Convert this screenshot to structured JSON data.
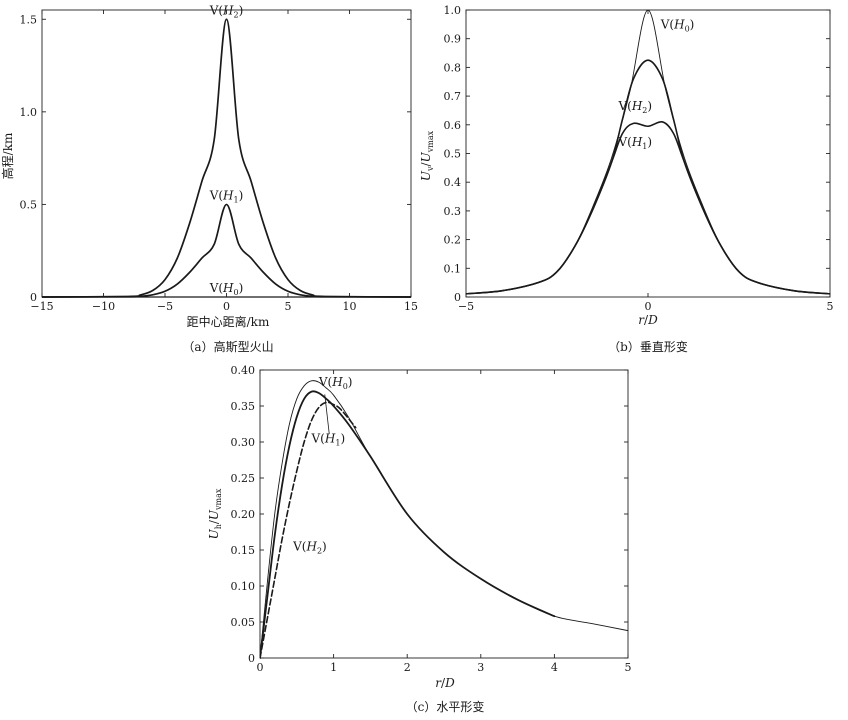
{
  "chart_data": [
    {
      "id": "a",
      "type": "line",
      "caption": "（a）高斯型火山",
      "xlabel": "距中心距离/km",
      "ylabel": "高程/km",
      "xlim": [
        -15,
        15
      ],
      "ylim": [
        0,
        1.55
      ],
      "xticks": [
        -15,
        -10,
        -5,
        0,
        5,
        10,
        15
      ],
      "yticks": [
        0,
        0.5,
        1.0,
        1.5
      ],
      "ytick_labels": [
        "0",
        "0.5",
        "1.0",
        "1.5"
      ],
      "grid": false,
      "series": [
        {
          "label_main": "V(",
          "label_sym": "H",
          "label_sub": "2",
          "label_end": ")",
          "ann_x": 0,
          "ann_y": 1.5,
          "ann_anchor": "above",
          "stroke": 1.7,
          "x": [
            -15,
            -8,
            -7,
            -6,
            -5,
            -4,
            -3,
            -2,
            -1,
            0,
            1,
            2,
            3,
            4,
            5,
            6,
            7,
            8,
            15
          ],
          "y": [
            0,
            0.003,
            0.011,
            0.035,
            0.094,
            0.21,
            0.398,
            0.625,
            0.85,
            1.5,
            0.85,
            0.625,
            0.398,
            0.21,
            0.094,
            0.035,
            0.011,
            0.003,
            0
          ]
        },
        {
          "label_main": "V(",
          "label_sym": "H",
          "label_sub": "1",
          "label_end": ")",
          "ann_x": 0,
          "ann_y": 0.5,
          "ann_anchor": "above",
          "stroke": 1.7,
          "x": [
            -15,
            -8,
            -7,
            -6,
            -5,
            -4,
            -3,
            -2,
            -1,
            0,
            1,
            2,
            3,
            4,
            5,
            6,
            7,
            8,
            15
          ],
          "y": [
            0,
            0.001,
            0.004,
            0.012,
            0.031,
            0.07,
            0.133,
            0.21,
            0.285,
            0.5,
            0.285,
            0.21,
            0.133,
            0.07,
            0.031,
            0.012,
            0.004,
            0.001,
            0
          ]
        },
        {
          "label_main": "V(",
          "label_sym": "H",
          "label_sub": "0",
          "label_end": ")",
          "ann_x": 0,
          "ann_y": 0,
          "ann_anchor": "above",
          "stroke": 1.2,
          "x": [
            -15,
            15
          ],
          "y": [
            0,
            0
          ]
        }
      ]
    },
    {
      "id": "b",
      "type": "line",
      "caption": "（b）垂直形变",
      "xlabel": "r/D",
      "ylabel": "Uv/Uvmax",
      "xlim": [
        -5,
        5
      ],
      "ylim": [
        0,
        1.0
      ],
      "xticks": [
        -5,
        0,
        5
      ],
      "yticks": [
        0,
        0.1,
        0.2,
        0.3,
        0.4,
        0.5,
        0.6,
        0.7,
        0.8,
        0.9,
        1.0
      ],
      "ytick_labels": [
        "0",
        "0.1",
        "0.2",
        "0.3",
        "0.4",
        "0.5",
        "0.6",
        "0.7",
        "0.8",
        "0.9",
        "1.0"
      ],
      "grid": false,
      "series": [
        {
          "label_main": "V(",
          "label_sym": "H",
          "label_sub": "0",
          "label_end": ")",
          "ann_x": 0.35,
          "ann_y": 0.95,
          "ann_anchor": "right",
          "stroke": 0.9,
          "x": [
            -5,
            -4,
            -3,
            -2.5,
            -2,
            -1.5,
            -1,
            -0.5,
            0,
            0.5,
            1,
            1.5,
            2,
            2.5,
            3,
            4,
            5
          ],
          "y": [
            0.011,
            0.022,
            0.051,
            0.088,
            0.179,
            0.32,
            0.485,
            0.715,
            1.0,
            0.715,
            0.485,
            0.32,
            0.179,
            0.088,
            0.051,
            0.022,
            0.011
          ]
        },
        {
          "label_main": "V(",
          "label_sym": "H",
          "label_sub": "2",
          "label_end": ")",
          "ann_x": -0.35,
          "ann_y": 0.665,
          "ann_anchor": "center",
          "stroke": 1.6,
          "x": [
            -5,
            -4,
            -3,
            -2.5,
            -2,
            -1.5,
            -1,
            -0.7,
            -0.4,
            0,
            0.4,
            0.7,
            1,
            1.5,
            2,
            2.5,
            3,
            4,
            5
          ],
          "y": [
            0.011,
            0.022,
            0.051,
            0.088,
            0.179,
            0.31,
            0.47,
            0.62,
            0.76,
            0.825,
            0.76,
            0.62,
            0.47,
            0.31,
            0.179,
            0.088,
            0.051,
            0.022,
            0.011
          ]
        },
        {
          "label_main": "V(",
          "label_sym": "H",
          "label_sub": "1",
          "label_end": ")",
          "ann_x": -0.35,
          "ann_y": 0.54,
          "ann_anchor": "center",
          "stroke": 1.6,
          "x": [
            -5,
            -4,
            -3,
            -2.5,
            -2,
            -1.5,
            -1,
            -0.7,
            -0.4,
            0,
            0.4,
            0.7,
            1,
            1.5,
            2,
            2.5,
            3,
            4,
            5
          ],
          "y": [
            0.011,
            0.022,
            0.051,
            0.088,
            0.179,
            0.31,
            0.47,
            0.57,
            0.605,
            0.595,
            0.61,
            0.57,
            0.47,
            0.31,
            0.179,
            0.088,
            0.051,
            0.022,
            0.011
          ]
        }
      ]
    },
    {
      "id": "c",
      "type": "line",
      "caption": "（c）水平形变",
      "xlabel": "r/D",
      "ylabel": "Uh/Uvmax",
      "xlim": [
        0,
        5
      ],
      "ylim": [
        0,
        0.4
      ],
      "xticks": [
        0,
        1,
        2,
        3,
        4,
        5
      ],
      "yticks": [
        0,
        0.05,
        0.1,
        0.15,
        0.2,
        0.25,
        0.3,
        0.35,
        0.4
      ],
      "ytick_labels": [
        "0",
        "0.05",
        "0.10",
        "0.15",
        "0.20",
        "0.25",
        "0.30",
        "0.35",
        "0.40"
      ],
      "grid": false,
      "series": [
        {
          "label_main": "V(",
          "label_sym": "H",
          "label_sub": "0",
          "label_end": ")",
          "ann_x": 0.8,
          "ann_y": 0.383,
          "ann_anchor": "right",
          "stroke": 0.9,
          "dash": false,
          "x": [
            0,
            0.1,
            0.2,
            0.3,
            0.4,
            0.5,
            0.6,
            0.7,
            0.8,
            0.9,
            1.0,
            1.2,
            1.5,
            2.0,
            2.5,
            3.0,
            3.5,
            4.0,
            4.5,
            5.0
          ],
          "y": [
            0,
            0.105,
            0.2,
            0.27,
            0.325,
            0.36,
            0.378,
            0.385,
            0.383,
            0.375,
            0.365,
            0.335,
            0.28,
            0.2,
            0.147,
            0.11,
            0.081,
            0.058,
            0.048,
            0.038
          ]
        },
        {
          "label_main": "V(",
          "label_sym": "H",
          "label_sub": "1",
          "label_end": ")",
          "ann_x": 0.7,
          "ann_y": 0.305,
          "ann_anchor": "right",
          "stroke": 1.8,
          "dash": false,
          "leader": [
            [
              0.94,
              0.312
            ],
            [
              0.88,
              0.366
            ]
          ],
          "x": [
            0,
            0.1,
            0.2,
            0.3,
            0.4,
            0.5,
            0.6,
            0.7,
            0.8,
            0.9,
            1.0,
            1.2,
            1.5,
            2.0,
            2.5,
            3.0,
            3.5,
            4.0
          ],
          "y": [
            0,
            0.085,
            0.17,
            0.24,
            0.295,
            0.335,
            0.36,
            0.37,
            0.368,
            0.36,
            0.35,
            0.325,
            0.28,
            0.2,
            0.147,
            0.11,
            0.081,
            0.058
          ]
        },
        {
          "label_main": "V(",
          "label_sym": "H",
          "label_sub": "2",
          "label_end": ")",
          "ann_x": 0.45,
          "ann_y": 0.155,
          "ann_anchor": "right",
          "stroke": 1.6,
          "dash": true,
          "x": [
            0,
            0.1,
            0.2,
            0.3,
            0.4,
            0.5,
            0.6,
            0.7,
            0.8,
            0.9,
            1.0,
            1.1,
            1.3
          ],
          "y": [
            0,
            0.055,
            0.11,
            0.165,
            0.215,
            0.26,
            0.3,
            0.33,
            0.348,
            0.355,
            0.352,
            0.345,
            0.32
          ]
        }
      ]
    }
  ]
}
